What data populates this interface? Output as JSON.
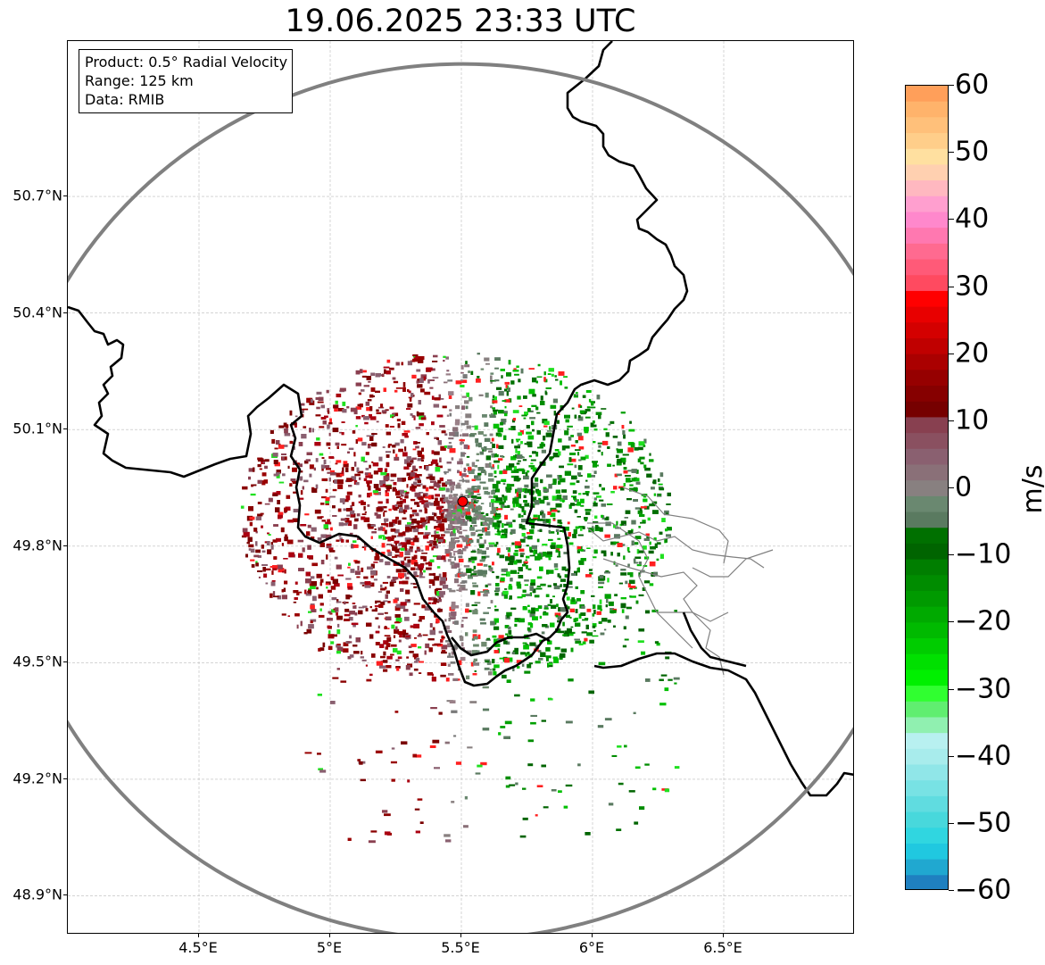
{
  "title": "19.06.2025 23:33 UTC",
  "info": {
    "product": "Product: 0.5° Radial Velocity",
    "range": "Range: 125 km",
    "data": "Data: RMIB"
  },
  "map": {
    "lon_range": [
      4.0,
      7.0
    ],
    "lat_range": [
      48.8,
      51.1
    ],
    "radar_site": {
      "lon": 5.505,
      "lat": 49.915
    },
    "range_km": 125,
    "x_ticks": [
      "4.5°E",
      "5°E",
      "5.5°E",
      "6°E",
      "6.5°E"
    ],
    "x_tick_values": [
      4.5,
      5.0,
      5.5,
      6.0,
      6.5
    ],
    "y_ticks": [
      "50.7°N",
      "50.4°N",
      "50.1°N",
      "49.8°N",
      "49.5°N",
      "49.2°N",
      "48.9°N"
    ],
    "y_tick_values": [
      50.7,
      50.4,
      50.1,
      49.8,
      49.5,
      49.2,
      48.9
    ],
    "gridlines": true
  },
  "colorbar": {
    "unit": "m/s",
    "min": -60,
    "max": 60,
    "tick_labels": [
      "60",
      "50",
      "40",
      "30",
      "20",
      "10",
      "0",
      "−10",
      "−20",
      "−30",
      "−40",
      "−50",
      "−60"
    ],
    "tick_values": [
      60,
      50,
      40,
      30,
      20,
      10,
      0,
      -10,
      -20,
      -30,
      -40,
      -50,
      -60
    ],
    "colors_top_to_bottom": [
      "#ff9f5a",
      "#ffb36b",
      "#ffc07a",
      "#ffce8a",
      "#ffe0a0",
      "#ffd0b0",
      "#ffb8c0",
      "#ff9fcf",
      "#ff88cc",
      "#ff78b0",
      "#ff6a90",
      "#ff5a78",
      "#ff4a60",
      "#ff0000",
      "#e80000",
      "#d40000",
      "#c00000",
      "#aa0000",
      "#960000",
      "#860000",
      "#760000",
      "#884050",
      "#8a5060",
      "#8a6070",
      "#8a7078",
      "#888080",
      "#6a8870",
      "#5a7a60",
      "#007000",
      "#006400",
      "#007e00",
      "#008c00",
      "#009a00",
      "#00aa00",
      "#00ba00",
      "#00cc00",
      "#00e000",
      "#00f000",
      "#30ff30",
      "#60ee70",
      "#90f0b0",
      "#b8f0f0",
      "#a8ecec",
      "#90e6e8",
      "#78e2e4",
      "#60dce0",
      "#48d8dc",
      "#30d6e0",
      "#20c8e0",
      "#20a8d0",
      "#1f80c0"
    ]
  }
}
